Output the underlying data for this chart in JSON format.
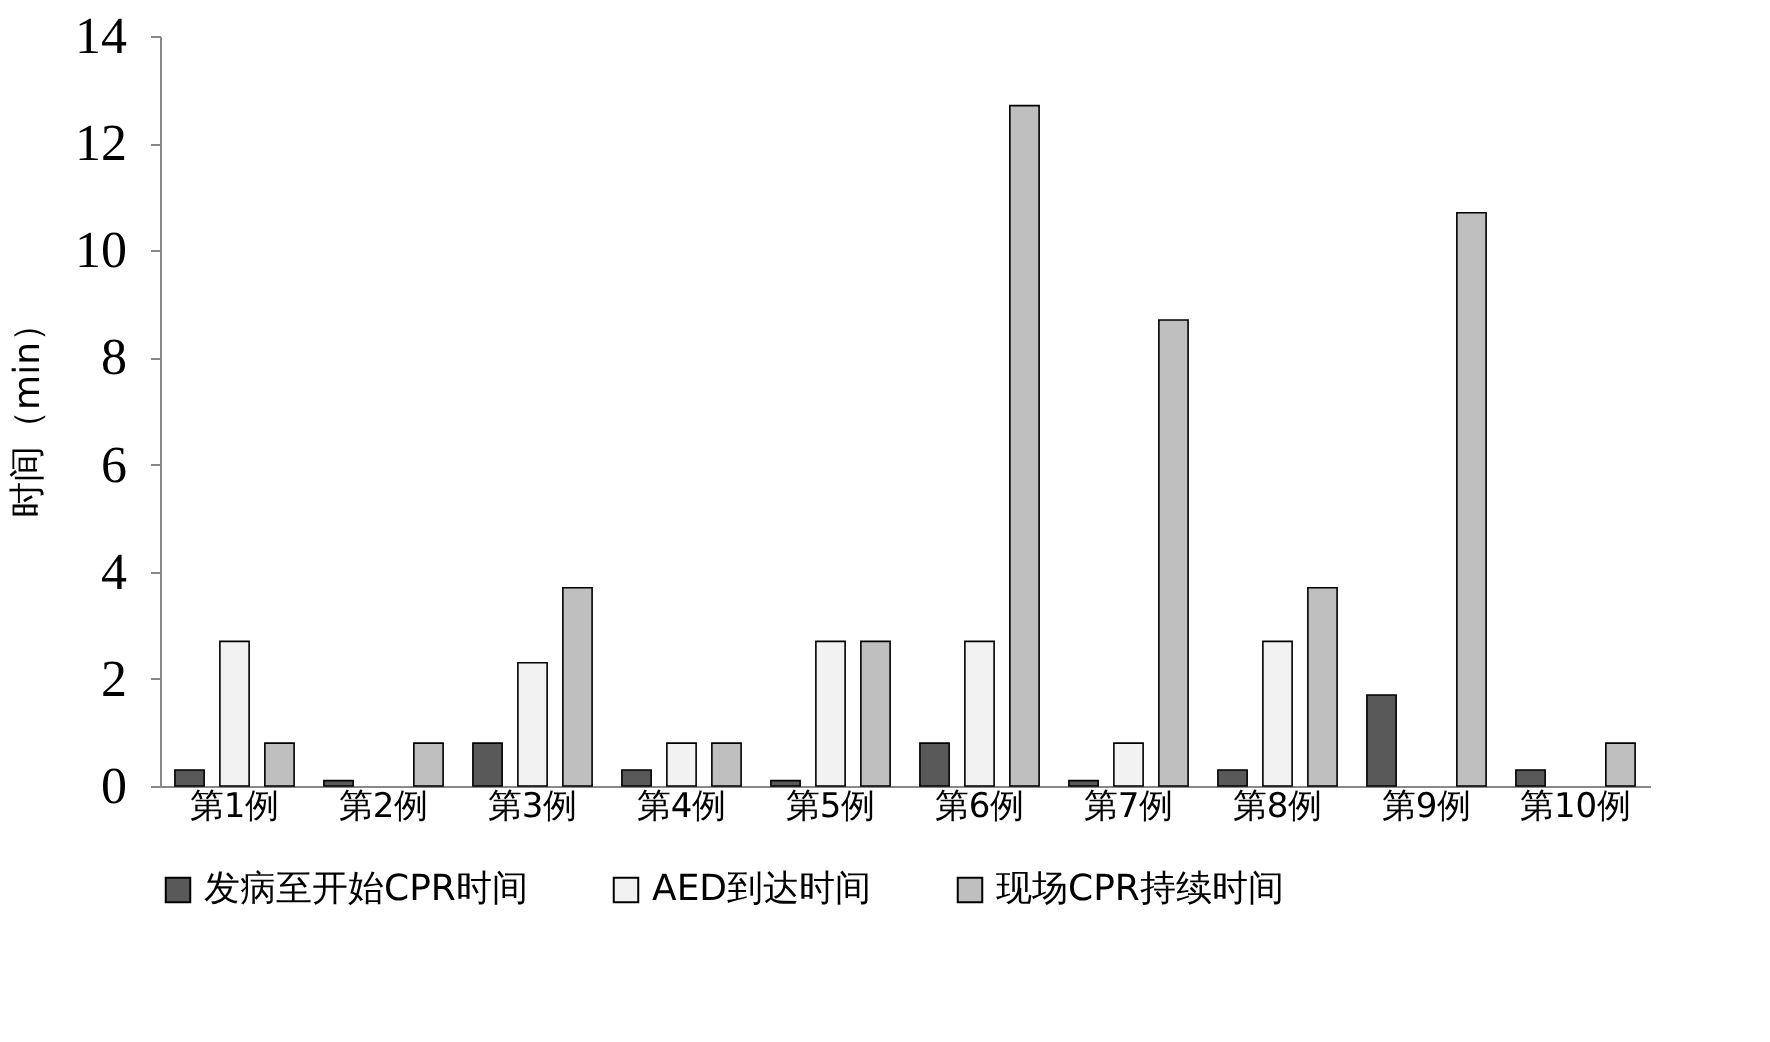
{
  "chart_data": {
    "type": "bar",
    "ylabel": "时间（min）",
    "categories": [
      "第1例",
      "第2例",
      "第3例",
      "第4例",
      "第5例",
      "第6例",
      "第7例",
      "第8例",
      "第9例",
      "第10例"
    ],
    "series": [
      {
        "name": "发病至开始CPR时间",
        "color": "#595959",
        "values": [
          0.3,
          0.1,
          0.8,
          0.3,
          0.1,
          0.8,
          0.1,
          0.3,
          1.7,
          0.3
        ]
      },
      {
        "name": "AED到达时间",
        "color": "#f2f2f2",
        "values": [
          2.7,
          null,
          2.3,
          0.8,
          2.7,
          2.7,
          0.8,
          2.7,
          null,
          null
        ]
      },
      {
        "name": "现场CPR持续时间",
        "color": "#bfbfbf",
        "values": [
          0.8,
          0.8,
          3.7,
          0.8,
          2.7,
          12.7,
          8.7,
          3.7,
          10.7,
          0.8
        ]
      }
    ],
    "ylim": [
      0,
      14
    ],
    "yticks": [
      0,
      2,
      4,
      6,
      8,
      10,
      12,
      14
    ],
    "grid": false,
    "legend": "bottom"
  }
}
